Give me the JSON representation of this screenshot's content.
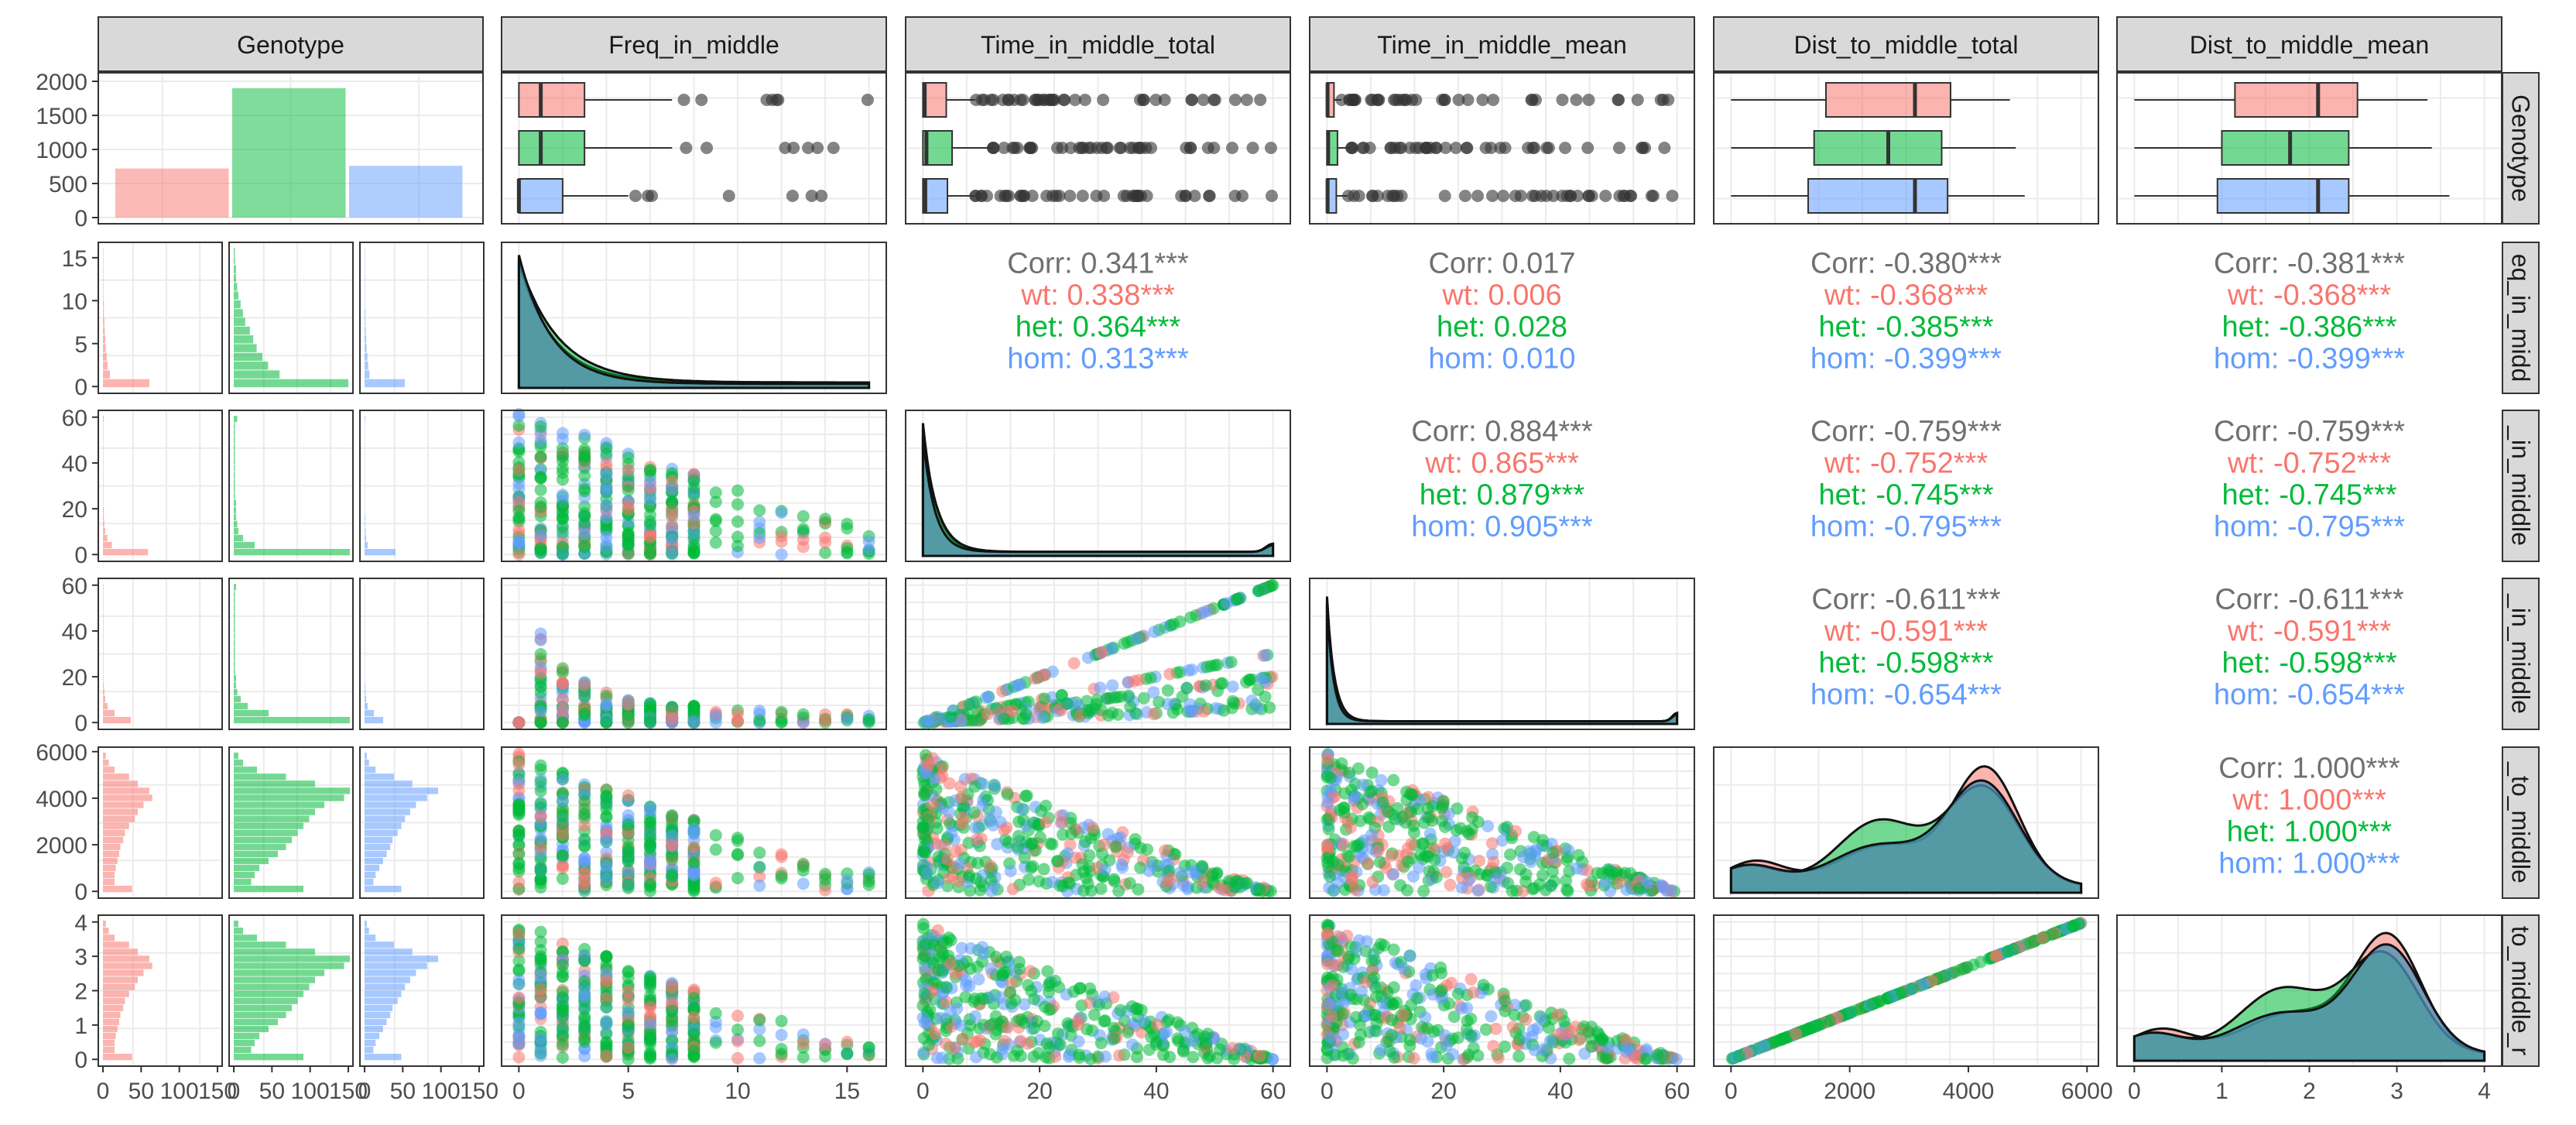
{
  "chart_data": {
    "type": "scatter",
    "title": "",
    "columns": [
      "Genotype",
      "Freq_in_middle",
      "Time_in_middle_total",
      "Time_in_middle_mean",
      "Dist_to_middle_total",
      "Dist_to_middle_mean"
    ],
    "row_strip_labels": [
      "Genotype",
      "eq_in_midd",
      "_in_middle",
      "_in_middle",
      "_to_middle",
      "to_middle_r"
    ],
    "groups": [
      "wt",
      "het",
      "hom"
    ],
    "colors": {
      "wt": "#F8766D",
      "het": "#00BA38",
      "hom": "#619CFF",
      "corr_total": "#707070",
      "strip_bg": "#D9D9D9",
      "grid": "#EBEBEB"
    },
    "genotype_counts": {
      "categories": [
        "wt",
        "het",
        "hom"
      ],
      "values": [
        720,
        1900,
        760
      ]
    },
    "ticks": {
      "count_y": [
        "0",
        "500",
        "1000",
        "1500",
        "2000"
      ],
      "freq": [
        "0",
        "5",
        "10",
        "15"
      ],
      "time": [
        "0",
        "20",
        "40",
        "60"
      ],
      "dist_total": [
        "0",
        "2000",
        "4000",
        "6000"
      ],
      "dist_mean": [
        "0",
        "1",
        "2",
        "3",
        "4"
      ],
      "hist_x": [
        "0",
        "50",
        "100",
        "150"
      ]
    },
    "axis_ranges": {
      "Freq_in_middle": [
        0,
        16
      ],
      "Time_in_middle_total": [
        0,
        60
      ],
      "Time_in_middle_mean": [
        0,
        60
      ],
      "Dist_to_middle_total": [
        0,
        5900
      ],
      "Dist_to_middle_mean": [
        0,
        4
      ]
    },
    "boxplots": {
      "Freq_in_middle": {
        "wt": [
          0,
          0,
          1,
          3,
          7
        ],
        "het": [
          0,
          0,
          1,
          3,
          7
        ],
        "hom": [
          0,
          0,
          0,
          2,
          5
        ]
      },
      "Time_in_middle_total": {
        "wt": [
          0,
          0,
          0.3,
          4,
          9
        ],
        "het": [
          0,
          0,
          0.6,
          5,
          12
        ],
        "hom": [
          0,
          0,
          0.4,
          4.2,
          9
        ]
      },
      "Time_in_middle_mean": {
        "wt": [
          0,
          0,
          0.1,
          1.2,
          2.5
        ],
        "het": [
          0,
          0,
          0.2,
          1.8,
          4
        ],
        "hom": [
          0,
          0,
          0.1,
          1.6,
          3.5
        ]
      },
      "Dist_to_middle_total": {
        "wt": [
          0,
          1600,
          3100,
          3700,
          4700
        ],
        "het": [
          0,
          1400,
          2650,
          3550,
          4800
        ],
        "hom": [
          0,
          1300,
          3100,
          3650,
          4950
        ]
      },
      "Dist_to_middle_mean": {
        "wt": [
          0,
          1.15,
          2.1,
          2.55,
          3.35
        ],
        "het": [
          0,
          1.0,
          1.78,
          2.45,
          3.4
        ],
        "hom": [
          0,
          0.95,
          2.1,
          2.45,
          3.6
        ]
      }
    },
    "correlations": [
      {
        "row": 1,
        "col": 2,
        "lines": [
          "Corr: 0.341***",
          "wt: 0.338***",
          "het: 0.364***",
          "hom: 0.313***"
        ]
      },
      {
        "row": 1,
        "col": 3,
        "lines": [
          "Corr: 0.017",
          "wt: 0.006",
          "het: 0.028",
          "hom: 0.010"
        ]
      },
      {
        "row": 1,
        "col": 4,
        "lines": [
          "Corr: -0.380***",
          "wt: -0.368***",
          "het: -0.385***",
          "hom: -0.399***"
        ]
      },
      {
        "row": 1,
        "col": 5,
        "lines": [
          "Corr: -0.381***",
          "wt: -0.368***",
          "het: -0.386***",
          "hom: -0.399***"
        ]
      },
      {
        "row": 2,
        "col": 3,
        "lines": [
          "Corr: 0.884***",
          "wt: 0.865***",
          "het: 0.879***",
          "hom: 0.905***"
        ]
      },
      {
        "row": 2,
        "col": 4,
        "lines": [
          "Corr: -0.759***",
          "wt: -0.752***",
          "het: -0.745***",
          "hom: -0.795***"
        ]
      },
      {
        "row": 2,
        "col": 5,
        "lines": [
          "Corr: -0.759***",
          "wt: -0.752***",
          "het: -0.745***",
          "hom: -0.795***"
        ]
      },
      {
        "row": 3,
        "col": 4,
        "lines": [
          "Corr: -0.611***",
          "wt: -0.591***",
          "het: -0.598***",
          "hom: -0.654***"
        ]
      },
      {
        "row": 3,
        "col": 5,
        "lines": [
          "Corr: -0.611***",
          "wt: -0.591***",
          "het: -0.598***",
          "hom: -0.654***"
        ]
      },
      {
        "row": 4,
        "col": 5,
        "lines": [
          "Corr: 1.000***",
          "wt: 1.000***",
          "het: 1.000***",
          "hom: 1.000***"
        ]
      }
    ],
    "grid": true,
    "legend": "none"
  }
}
